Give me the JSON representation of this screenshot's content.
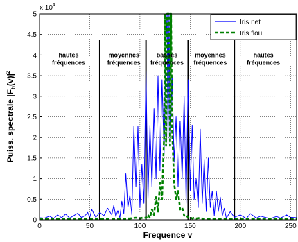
{
  "chart_data": {
    "type": "line",
    "xlabel": "Frequence v",
    "ylabel": "Puiss. spectrale |F",
    "ylabel_sub": "b",
    "ylabel_tail": "(v)|",
    "ylabel_sup": "2",
    "scale_prefix": "x 10",
    "scale_exp": "4",
    "xlim": [
      0,
      256
    ],
    "ylim": [
      0,
      5
    ],
    "grid": true,
    "legend_position": "top-right",
    "x_ticks": [
      "0",
      "50",
      "100",
      "150",
      "200",
      "250"
    ],
    "y_ticks": [
      "0",
      "0.5",
      "1",
      "1.5",
      "2",
      "2.5",
      "3",
      "3.5",
      "4",
      "4.5",
      "5"
    ],
    "legend": [
      {
        "name": "Iris net",
        "color": "#0000ff",
        "style": "solid"
      },
      {
        "name": "Iris flou",
        "color": "#008000",
        "style": "dashed"
      }
    ],
    "vertical_lines": [
      {
        "x": 60,
        "y_top": 4.37
      },
      {
        "x": 106,
        "y_top": 4.37
      },
      {
        "x": 148,
        "y_top": 4.37
      },
      {
        "x": 194,
        "y_top": 4.37
      }
    ],
    "region_labels": [
      {
        "line1": "hautes",
        "line2": "fréquences",
        "x": 29,
        "y": 3.95
      },
      {
        "line1": "moyennes",
        "line2": "fréquences",
        "x": 84,
        "y": 3.95
      },
      {
        "line1": "basses",
        "line2": "fréquences",
        "x": 127,
        "y": 3.95
      },
      {
        "line1": "moyennes",
        "line2": "fréquences",
        "x": 170,
        "y": 3.95
      },
      {
        "line1": "hautes",
        "line2": "fréquences",
        "x": 223,
        "y": 3.95
      }
    ],
    "series": [
      {
        "name": "Iris net",
        "color": "#0000ff",
        "x": [
          0,
          5,
          10,
          14,
          18,
          22,
          26,
          30,
          34,
          38,
          42,
          46,
          48,
          50,
          52,
          56,
          60,
          64,
          68,
          72,
          74,
          76,
          78,
          80,
          82,
          84,
          86,
          88,
          90,
          92,
          94,
          96,
          98,
          100,
          102,
          104,
          106,
          108,
          110,
          112,
          114,
          116,
          118,
          120,
          122,
          124,
          126,
          127,
          128,
          129,
          130,
          132,
          134,
          136,
          138,
          140,
          142,
          144,
          146,
          148,
          150,
          152,
          154,
          156,
          158,
          160,
          162,
          164,
          166,
          168,
          170,
          172,
          174,
          176,
          178,
          180,
          182,
          184,
          186,
          190,
          194,
          200,
          206,
          210,
          216,
          220,
          226,
          230,
          236,
          240,
          246,
          250,
          256
        ],
        "y": [
          0.05,
          0.04,
          0.09,
          0.03,
          0.12,
          0.05,
          0.14,
          0.04,
          0.1,
          0.16,
          0.05,
          0.12,
          0.18,
          0.05,
          0.25,
          0.06,
          0.18,
          0.1,
          0.28,
          0.12,
          0.35,
          0.08,
          0.22,
          0.05,
          0.45,
          0.15,
          1.12,
          0.3,
          0.6,
          0.12,
          2.28,
          0.8,
          2.28,
          0.3,
          1.35,
          0.4,
          3.6,
          0.5,
          2.3,
          0.8,
          2.7,
          1.0,
          3.5,
          1.2,
          3.4,
          1.6,
          4.3,
          5,
          1.8,
          5,
          1.8,
          3.5,
          1.4,
          2.5,
          0.8,
          2.4,
          1.0,
          3.0,
          0.4,
          3.4,
          0.7,
          2.3,
          0.5,
          1.0,
          0.3,
          2.2,
          0.4,
          1.45,
          0.2,
          1.5,
          0.3,
          0.7,
          0.1,
          0.7,
          0.2,
          0.55,
          0.1,
          0.28,
          0.04,
          0.2,
          0.06,
          0.12,
          0.03,
          0.15,
          0.04,
          0.09,
          0.05,
          0.03,
          0.08,
          0.04,
          0.12,
          0.06,
          0.05
        ]
      },
      {
        "name": "Iris flou",
        "color": "#008000",
        "x": [
          0,
          30,
          60,
          90,
          96,
          100,
          104,
          106,
          108,
          110,
          112,
          114,
          116,
          118,
          120,
          122,
          124,
          125,
          126,
          127,
          128,
          129,
          130,
          131,
          132,
          134,
          136,
          138,
          140,
          142,
          144,
          146,
          148,
          150,
          152,
          154,
          156,
          158,
          162,
          166,
          196,
          226,
          256
        ],
        "y": [
          0.02,
          0.02,
          0.02,
          0.03,
          0.05,
          0.03,
          0.06,
          0.04,
          0.12,
          0.05,
          0.25,
          0.12,
          0.55,
          0.2,
          0.9,
          0.5,
          2.0,
          5,
          1.8,
          5,
          5,
          5,
          1.8,
          5,
          2.2,
          0.9,
          0.5,
          0.7,
          0.25,
          0.3,
          0.1,
          0.12,
          0.05,
          0.06,
          0.03,
          0.05,
          0.03,
          0.04,
          0.03,
          0.02,
          0.02,
          0.02,
          0.02
        ]
      }
    ]
  }
}
